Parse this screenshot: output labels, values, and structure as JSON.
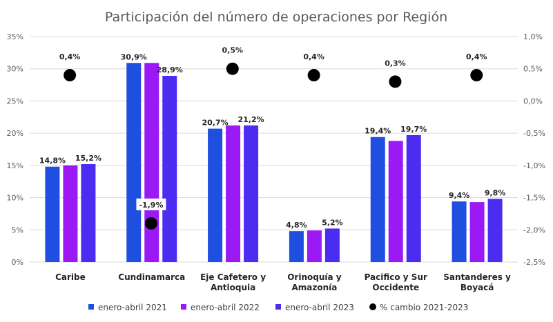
{
  "chart_data": {
    "type": "bar",
    "title": "Participación del número de operaciones por Región",
    "categories": [
      [
        "Caribe"
      ],
      [
        "Cundinamarca"
      ],
      [
        "Eje Cafetero y",
        "Antioquia"
      ],
      [
        "Orinoquía y",
        "Amazonía"
      ],
      [
        "Pacifico y Sur",
        "Occidente"
      ],
      [
        "Santanderes y",
        "Boyacá"
      ]
    ],
    "series": [
      {
        "name": "enero-abril 2021",
        "color": "#1f4fe0",
        "values": [
          14.8,
          30.9,
          20.7,
          4.8,
          19.4,
          9.4
        ],
        "labels": [
          "14,8%",
          "30,9%",
          "20,7%",
          "4,8%",
          "19,4%",
          "9,4%"
        ]
      },
      {
        "name": "enero-abril 2022",
        "color": "#9b19f5",
        "values": [
          15.0,
          30.9,
          21.2,
          4.9,
          18.8,
          9.3
        ],
        "labels": [
          "",
          "",
          "",
          "",
          "",
          ""
        ]
      },
      {
        "name": "enero-abril 2023",
        "color": "#4b2cf0",
        "values": [
          15.2,
          28.9,
          21.2,
          5.2,
          19.7,
          9.8
        ],
        "labels": [
          "15,2%",
          "28,9%",
          "21,2%",
          "5,2%",
          "19,7%",
          "9,8%"
        ]
      }
    ],
    "change_series": {
      "name": "% cambio 2021-2023",
      "color": "#000000",
      "values": [
        0.4,
        -1.9,
        0.5,
        0.4,
        0.3,
        0.4
      ],
      "labels": [
        "0,4%",
        "-1,9%",
        "0,5%",
        "0,4%",
        "0,3%",
        "0,4%"
      ]
    },
    "y_left": {
      "min": 0,
      "max": 35,
      "step": 5,
      "ticks": [
        "0%",
        "5%",
        "10%",
        "15%",
        "20%",
        "25%",
        "30%",
        "35%"
      ]
    },
    "y_right": {
      "min": -2.5,
      "max": 1.0,
      "step": 0.5,
      "ticks": [
        "-2,5%",
        "-2,0%",
        "-1,5%",
        "-1,0%",
        "-0,5%",
        "0,0%",
        "0,5%",
        "1,0%"
      ]
    },
    "grid": true,
    "legend_position": "bottom"
  }
}
